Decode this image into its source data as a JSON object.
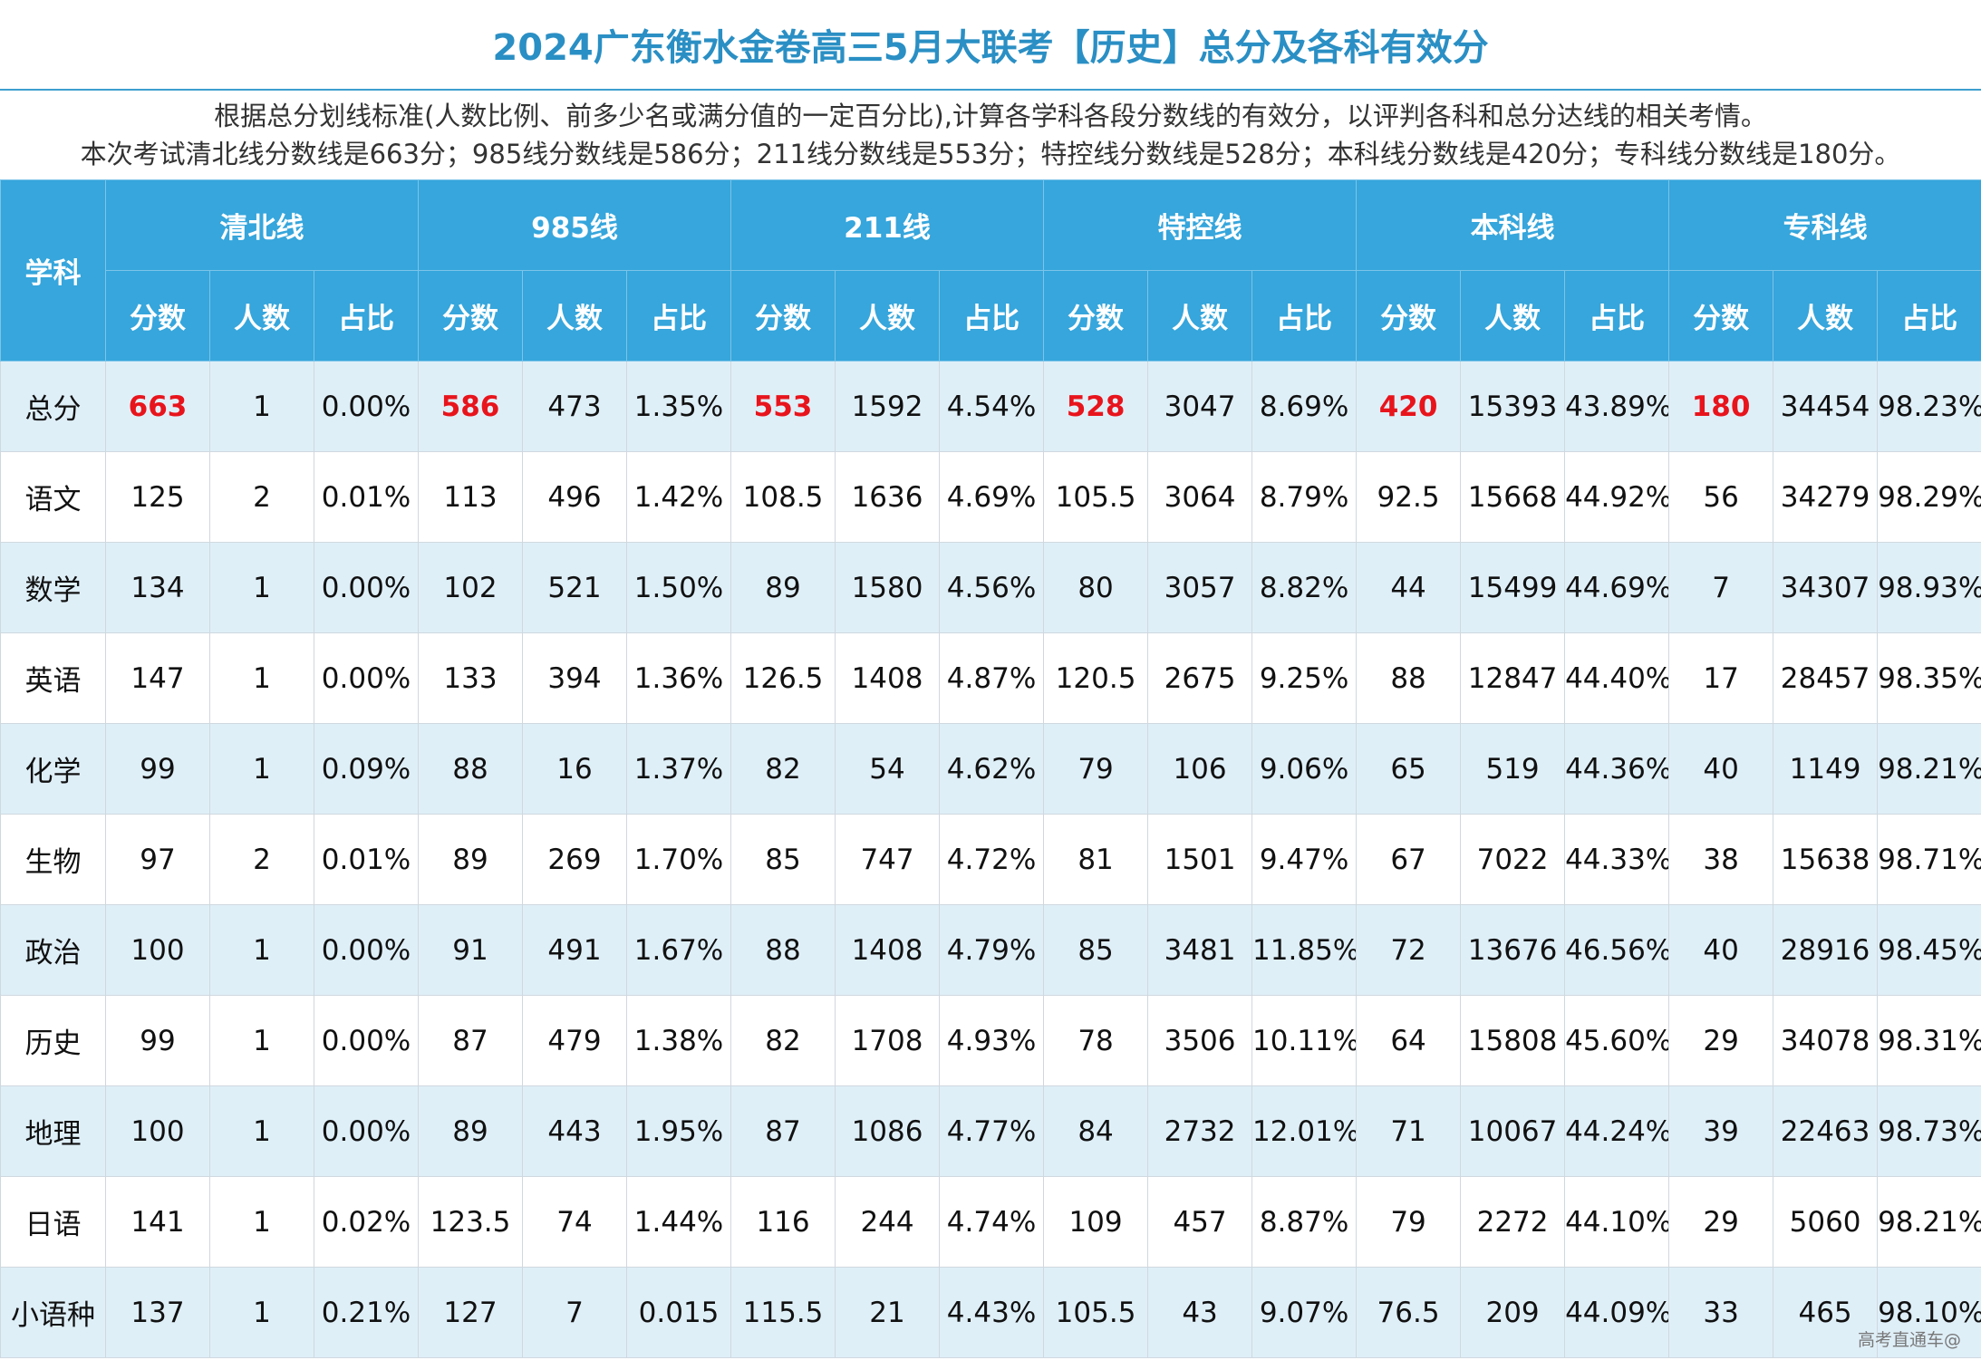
{
  "title": "2024广东衡水金卷高三5月大联考【历史】总分及各科有效分",
  "description": {
    "line1": "根据总分划线标准(人数比例、前多少名或满分值的一定百分比),计算各学科各段分数线的有效分，以评判各科和总分达线的相关考情。",
    "line2": "本次考试清北线分数线是663分；985线分数线是586分；211线分数线是553分；特控线分数线是528分；本科线分数线是420分；专科线分数线是180分。"
  },
  "header": {
    "subject_label": "学科",
    "groups": [
      "清北线",
      "985线",
      "211线",
      "特控线",
      "本科线",
      "专科线"
    ],
    "sub_cols": [
      "分数",
      "人数",
      "占比"
    ]
  },
  "rows": [
    {
      "subject": "总分",
      "cells": [
        "663",
        "1",
        "0.00%",
        "586",
        "473",
        "1.35%",
        "553",
        "1592",
        "4.54%",
        "528",
        "3047",
        "8.69%",
        "420",
        "15393",
        "43.89%",
        "180",
        "34454",
        "98.23%"
      ]
    },
    {
      "subject": "语文",
      "cells": [
        "125",
        "2",
        "0.01%",
        "113",
        "496",
        "1.42%",
        "108.5",
        "1636",
        "4.69%",
        "105.5",
        "3064",
        "8.79%",
        "92.5",
        "15668",
        "44.92%",
        "56",
        "34279",
        "98.29%"
      ]
    },
    {
      "subject": "数学",
      "cells": [
        "134",
        "1",
        "0.00%",
        "102",
        "521",
        "1.50%",
        "89",
        "1580",
        "4.56%",
        "80",
        "3057",
        "8.82%",
        "44",
        "15499",
        "44.69%",
        "7",
        "34307",
        "98.93%"
      ]
    },
    {
      "subject": "英语",
      "cells": [
        "147",
        "1",
        "0.00%",
        "133",
        "394",
        "1.36%",
        "126.5",
        "1408",
        "4.87%",
        "120.5",
        "2675",
        "9.25%",
        "88",
        "12847",
        "44.40%",
        "17",
        "28457",
        "98.35%"
      ]
    },
    {
      "subject": "化学",
      "cells": [
        "99",
        "1",
        "0.09%",
        "88",
        "16",
        "1.37%",
        "82",
        "54",
        "4.62%",
        "79",
        "106",
        "9.06%",
        "65",
        "519",
        "44.36%",
        "40",
        "1149",
        "98.21%"
      ]
    },
    {
      "subject": "生物",
      "cells": [
        "97",
        "2",
        "0.01%",
        "89",
        "269",
        "1.70%",
        "85",
        "747",
        "4.72%",
        "81",
        "1501",
        "9.47%",
        "67",
        "7022",
        "44.33%",
        "38",
        "15638",
        "98.71%"
      ]
    },
    {
      "subject": "政治",
      "cells": [
        "100",
        "1",
        "0.00%",
        "91",
        "491",
        "1.67%",
        "88",
        "1408",
        "4.79%",
        "85",
        "3481",
        "11.85%",
        "72",
        "13676",
        "46.56%",
        "40",
        "28916",
        "98.45%"
      ]
    },
    {
      "subject": "历史",
      "cells": [
        "99",
        "1",
        "0.00%",
        "87",
        "479",
        "1.38%",
        "82",
        "1708",
        "4.93%",
        "78",
        "3506",
        "10.11%",
        "64",
        "15808",
        "45.60%",
        "29",
        "34078",
        "98.31%"
      ]
    },
    {
      "subject": "地理",
      "cells": [
        "100",
        "1",
        "0.00%",
        "89",
        "443",
        "1.95%",
        "87",
        "1086",
        "4.77%",
        "84",
        "2732",
        "12.01%",
        "71",
        "10067",
        "44.24%",
        "39",
        "22463",
        "98.73%"
      ]
    },
    {
      "subject": "日语",
      "cells": [
        "141",
        "1",
        "0.02%",
        "123.5",
        "74",
        "1.44%",
        "116",
        "244",
        "4.74%",
        "109",
        "457",
        "8.87%",
        "79",
        "2272",
        "44.10%",
        "29",
        "5060",
        "98.21%"
      ]
    },
    {
      "subject": "小语种",
      "cells": [
        "137",
        "1",
        "0.21%",
        "127",
        "7",
        "0.015",
        "115.5",
        "21",
        "4.43%",
        "105.5",
        "43",
        "9.07%",
        "76.5",
        "209",
        "44.09%",
        "33",
        "465",
        "98.10%"
      ]
    }
  ],
  "colors": {
    "header_bg": "#36a6dc",
    "title_color": "#2a8fc4",
    "row_stripe": "#dfeff8",
    "highlight": "#e8141c"
  },
  "watermark": "高考直通车@"
}
